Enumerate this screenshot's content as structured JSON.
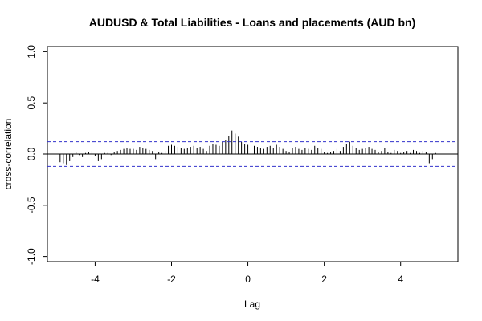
{
  "chart_data": {
    "type": "bar",
    "title": "AUDUSD & Total Liabilities - Loans and placements (AUD bn)",
    "xlabel": "Lag",
    "ylabel": "cross-correlation",
    "xlim": [
      -5.25,
      5.5
    ],
    "ylim": [
      -1.05,
      1.05
    ],
    "xticks": [
      -4,
      -2,
      0,
      2,
      4
    ],
    "xtick_labels": [
      "-4",
      "-2",
      "0",
      "2",
      "4"
    ],
    "yticks": [
      -1.0,
      -0.5,
      0.0,
      0.5,
      1.0
    ],
    "ytick_labels": [
      "-1.0",
      "-0.5",
      "0.0",
      "0.5",
      "1.0"
    ],
    "confidence_bound": 0.12,
    "colors": {
      "bars": "#000000",
      "zero_line": "#000000",
      "ci_lines": "#3333cc",
      "frame": "#000000"
    },
    "lags": [
      -4.917,
      -4.833,
      -4.75,
      -4.667,
      -4.583,
      -4.5,
      -4.417,
      -4.333,
      -4.25,
      -4.167,
      -4.083,
      -4.0,
      -3.917,
      -3.833,
      -3.75,
      -3.667,
      -3.583,
      -3.5,
      -3.417,
      -3.333,
      -3.25,
      -3.167,
      -3.083,
      -3.0,
      -2.917,
      -2.833,
      -2.75,
      -2.667,
      -2.583,
      -2.5,
      -2.417,
      -2.333,
      -2.25,
      -2.167,
      -2.083,
      -2.0,
      -1.917,
      -1.833,
      -1.75,
      -1.667,
      -1.583,
      -1.5,
      -1.417,
      -1.333,
      -1.25,
      -1.167,
      -1.083,
      -1.0,
      -0.917,
      -0.833,
      -0.75,
      -0.667,
      -0.583,
      -0.5,
      -0.417,
      -0.333,
      -0.25,
      -0.167,
      -0.083,
      0.0,
      0.083,
      0.167,
      0.25,
      0.333,
      0.417,
      0.5,
      0.583,
      0.667,
      0.75,
      0.833,
      0.917,
      1.0,
      1.083,
      1.167,
      1.25,
      1.333,
      1.417,
      1.5,
      1.583,
      1.667,
      1.75,
      1.833,
      1.917,
      2.0,
      2.083,
      2.167,
      2.25,
      2.333,
      2.417,
      2.5,
      2.583,
      2.667,
      2.75,
      2.833,
      2.917,
      3.0,
      3.083,
      3.167,
      3.25,
      3.333,
      3.417,
      3.5,
      3.583,
      3.667,
      3.75,
      3.833,
      3.917,
      4.0,
      4.083,
      4.167,
      4.25,
      4.333,
      4.417,
      4.5,
      4.583,
      4.667,
      4.75,
      4.833,
      4.917
    ],
    "values": [
      -0.08,
      -0.09,
      -0.1,
      -0.07,
      -0.03,
      0.02,
      -0.01,
      -0.03,
      0.01,
      0.02,
      0.03,
      -0.02,
      -0.07,
      -0.05,
      0.01,
      0.01,
      -0.01,
      0.02,
      0.03,
      0.04,
      0.05,
      0.06,
      0.05,
      0.05,
      0.04,
      0.07,
      0.06,
      0.05,
      0.04,
      0.03,
      -0.05,
      0.02,
      0.01,
      0.03,
      0.08,
      0.09,
      0.08,
      0.07,
      0.06,
      0.05,
      0.06,
      0.07,
      0.08,
      0.06,
      0.07,
      0.05,
      0.03,
      0.08,
      0.1,
      0.09,
      0.08,
      0.12,
      0.14,
      0.18,
      0.23,
      0.2,
      0.17,
      0.12,
      0.1,
      0.09,
      0.08,
      0.08,
      0.07,
      0.06,
      0.05,
      0.07,
      0.08,
      0.06,
      0.09,
      0.07,
      0.05,
      0.03,
      0.02,
      0.06,
      0.07,
      0.05,
      0.04,
      0.06,
      0.05,
      0.04,
      0.08,
      0.06,
      0.05,
      0.02,
      0.01,
      0.02,
      0.03,
      0.05,
      0.03,
      0.07,
      0.1,
      0.12,
      0.08,
      0.06,
      0.04,
      0.05,
      0.06,
      0.07,
      0.05,
      0.04,
      0.02,
      0.03,
      0.06,
      0.02,
      0.01,
      0.04,
      0.03,
      0.01,
      0.02,
      0.03,
      0.01,
      0.04,
      0.03,
      0.01,
      0.03,
      0.02,
      -0.09,
      -0.05,
      0.01
    ]
  }
}
